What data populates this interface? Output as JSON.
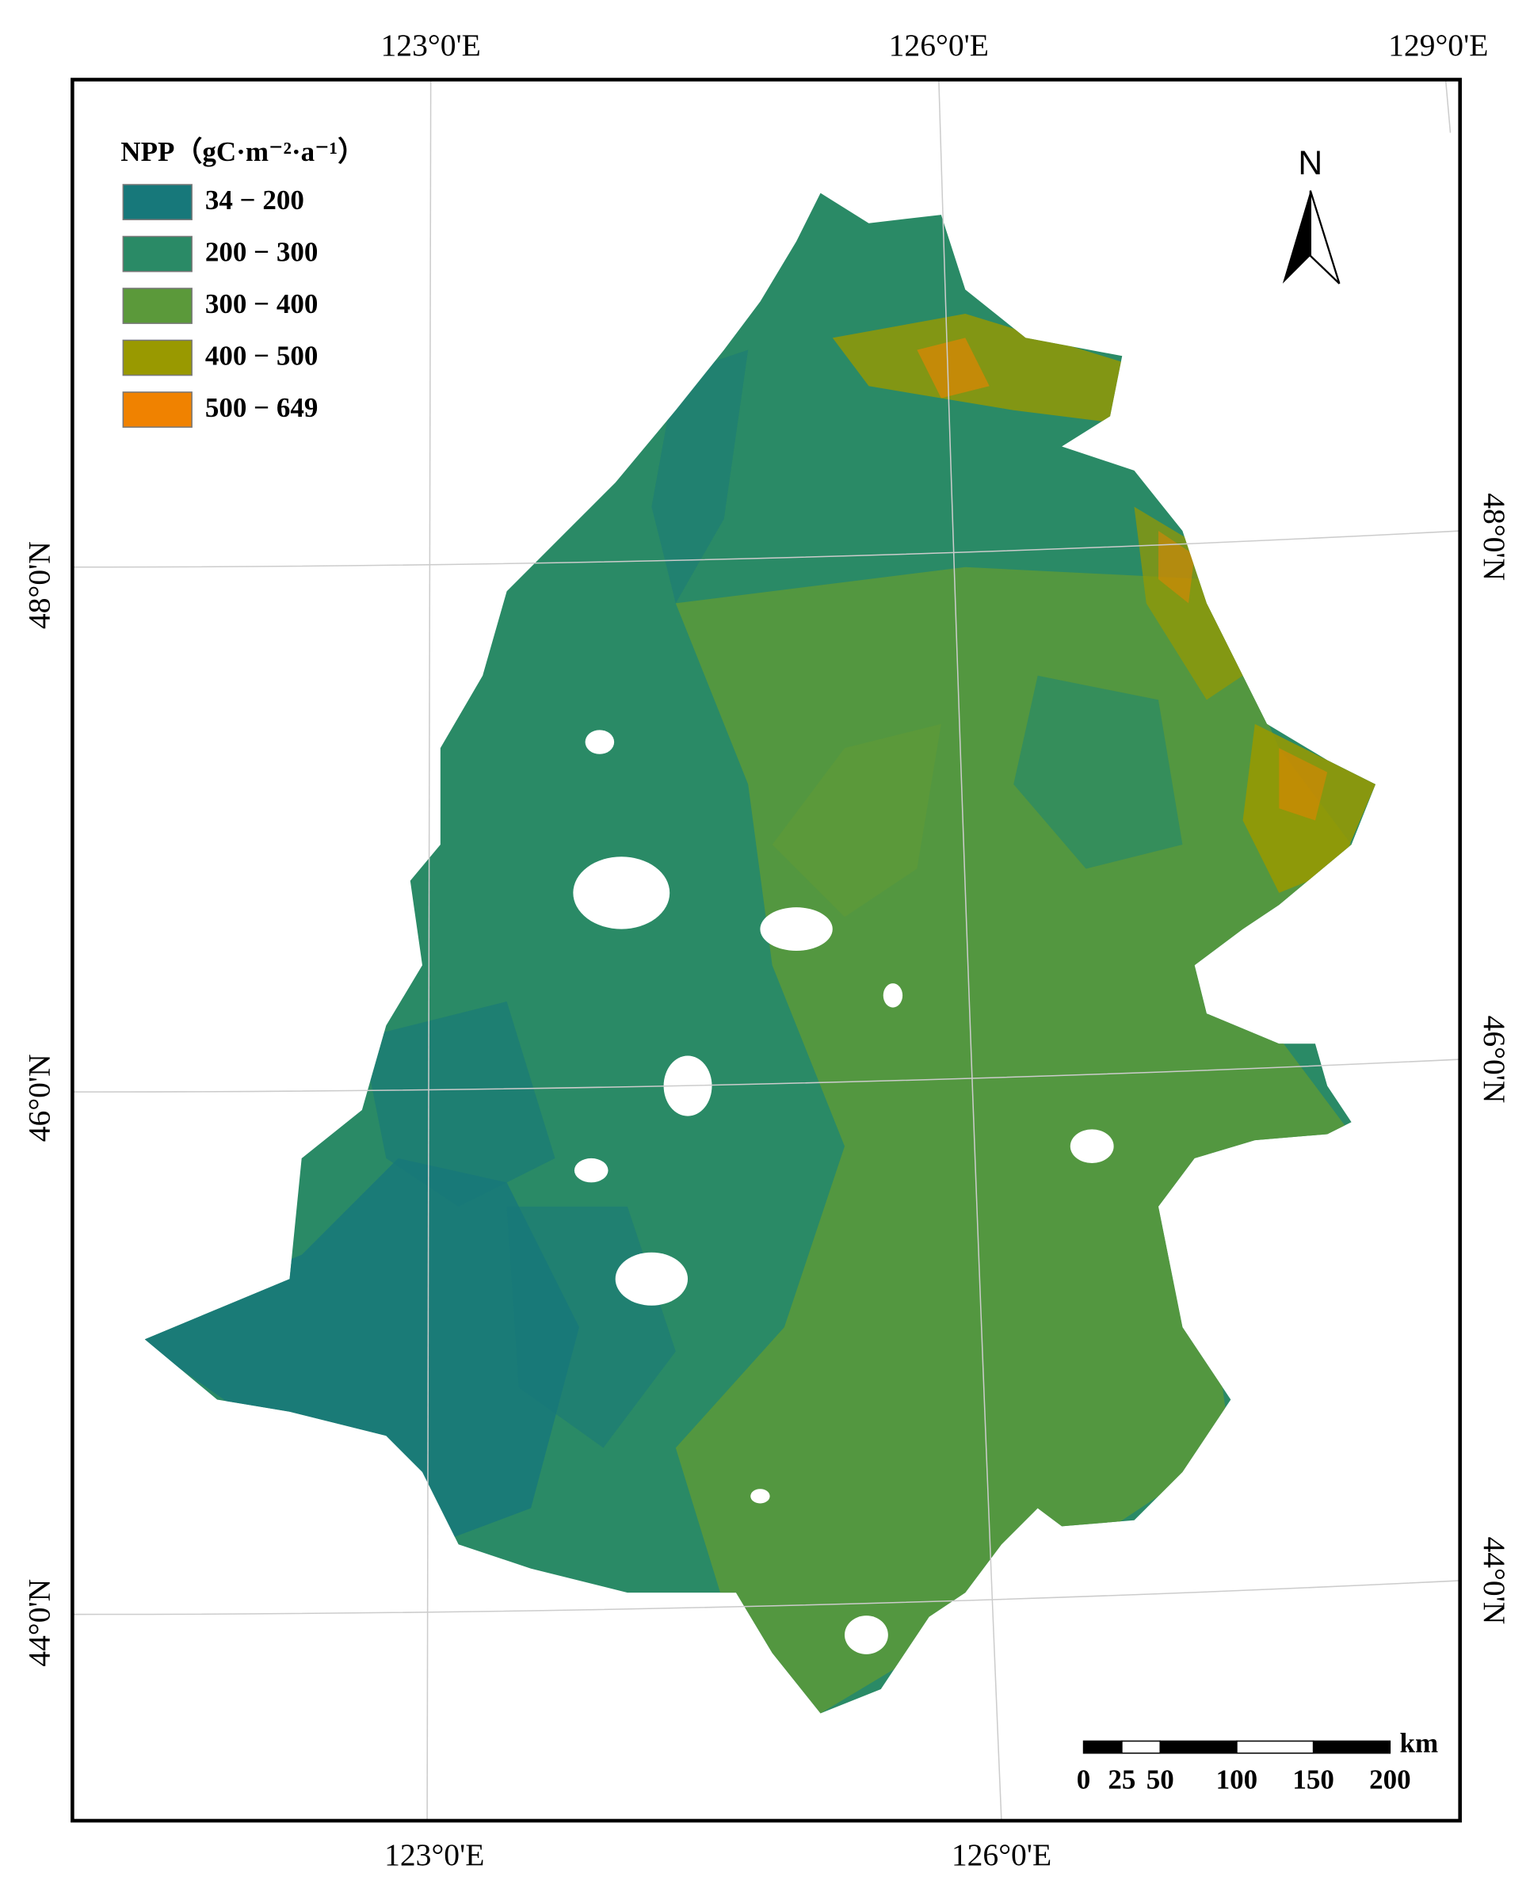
{
  "legend": {
    "title": "NPP（gC·m⁻²·a⁻¹）",
    "items": [
      {
        "label": "34 − 200",
        "color": "#17787a"
      },
      {
        "label": "200 − 300",
        "color": "#2a8a66"
      },
      {
        "label": "300 − 400",
        "color": "#5b993a"
      },
      {
        "label": "400 − 500",
        "color": "#999900"
      },
      {
        "label": "500 − 649",
        "color": "#f08200"
      }
    ]
  },
  "graticule": {
    "top": [
      "123°0'E",
      "126°0'E",
      "129°0'E"
    ],
    "bottom": [
      "123°0'E",
      "126°0'E"
    ],
    "left": [
      "48°0'N",
      "46°0'N",
      "44°0'N"
    ],
    "right": [
      "48°0'N",
      "46°0'N",
      "44°0'N"
    ]
  },
  "north_arrow": "N",
  "scale_bar": {
    "unit": "km",
    "ticks": [
      0,
      25,
      50,
      100,
      150,
      200
    ]
  }
}
